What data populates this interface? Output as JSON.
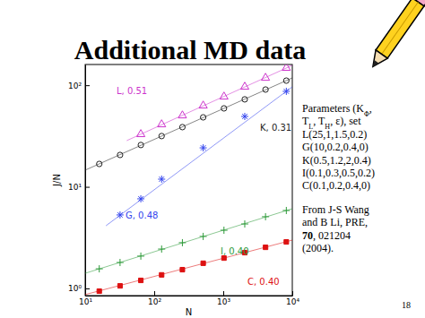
{
  "slide": {
    "title": "Additional MD data",
    "notes": [
      [
        {
          "text": "Parameters (K"
        },
        {
          "text": "Φ",
          "sub": true
        },
        {
          "text": ","
        }
      ],
      [
        {
          "text": "T"
        },
        {
          "text": "L",
          "sub": true
        },
        {
          "text": ", T"
        },
        {
          "text": "H",
          "sub": true
        },
        {
          "text": ", ε), set"
        }
      ],
      [
        {
          "text": "L(25,1,1.5,0.2)"
        }
      ],
      [
        {
          "text": "G(10,0.2,0.4,0)"
        }
      ],
      [
        {
          "text": "K(0.5,1.2,2,0.4)"
        }
      ],
      [
        {
          "text": "I(0.1,0.3,0.5,0.2)"
        }
      ],
      [
        {
          "text": "C(0.1,0.2,0.4,0)"
        }
      ]
    ],
    "citation": [
      [
        {
          "text": "From J-S Wang"
        }
      ],
      [
        {
          "text": "and B Li, PRE,"
        }
      ],
      [
        {
          "text": "70",
          "bold": true
        },
        {
          "text": ", 021204"
        }
      ],
      [
        {
          "text": "(2004)."
        }
      ]
    ],
    "page": 18
  },
  "chart_data": {
    "type": "scatter",
    "log": true,
    "x_label": "N",
    "y_label": "J/N",
    "xlim": [
      10,
      10000
    ],
    "ylim": [
      0.85,
      160
    ],
    "xticks": [
      {
        "value": 10,
        "label": "10¹"
      },
      {
        "value": 100,
        "label": "10²"
      },
      {
        "value": 1000,
        "label": "10³"
      },
      {
        "value": 10000,
        "label": "10⁴"
      }
    ],
    "yticks": [
      {
        "value": 1,
        "label": "10⁰"
      },
      {
        "value": 10,
        "label": "10¹"
      },
      {
        "value": 100,
        "label": "10²"
      }
    ],
    "series": [
      {
        "name": "L, 0.51",
        "color": "#cc33cc",
        "marker": "triangle",
        "x": [
          64,
          128,
          256,
          512,
          1024,
          2048,
          4096,
          8192
        ],
        "values": [
          32.9,
          41.1,
          50.3,
          62.9,
          77.1,
          96.4,
          118,
          148
        ],
        "fit": {
          "x": [
            40,
            10000
          ],
          "values": [
            28.5,
            157
          ]
        }
      },
      {
        "name": "G, 0.48",
        "color": "#3344ee",
        "marker": "asterisk",
        "x": [
          32,
          64,
          128,
          512,
          2048,
          8192
        ],
        "values": [
          5.29,
          7.62,
          11.9,
          24.2,
          49.3,
          87.1
        ],
        "fit": {
          "x": [
            20,
            10000
          ],
          "values": [
            4.14,
            96.4
          ]
        }
      },
      {
        "name": "K, 0.31",
        "color": "#222222",
        "marker": "circle",
        "x": [
          16,
          32,
          64,
          128,
          256,
          512,
          1024,
          2048,
          4096,
          8192
        ],
        "values": [
          16.8,
          20.6,
          25.8,
          31.6,
          38.7,
          48.3,
          59.2,
          72.6,
          90.7,
          111
        ],
        "fit": {
          "x": [
            10,
            10000
          ],
          "values": [
            14.6,
            118
          ]
        }
      },
      {
        "name": "I, 0.40",
        "color": "#2e9a3a",
        "marker": "plus",
        "x": [
          16,
          32,
          64,
          128,
          256,
          512,
          1024,
          2048,
          4096,
          8192
        ],
        "values": [
          1.56,
          1.8,
          2.08,
          2.44,
          2.82,
          3.25,
          3.74,
          4.31,
          5.08,
          5.85
        ],
        "fit": {
          "x": [
            10,
            10000
          ],
          "values": [
            1.41,
            6.09
          ]
        }
      },
      {
        "name": "C, 0.40",
        "color": "#dd1111",
        "marker": "square",
        "x": [
          16,
          32,
          64,
          128,
          256,
          512,
          1024,
          2048,
          4096,
          8192
        ],
        "values": [
          0.94,
          1.06,
          1.2,
          1.36,
          1.53,
          1.77,
          1.99,
          2.25,
          2.54,
          2.87
        ],
        "fit": {
          "x": [
            10,
            10000
          ],
          "values": [
            0.87,
            2.99
          ]
        }
      }
    ]
  }
}
